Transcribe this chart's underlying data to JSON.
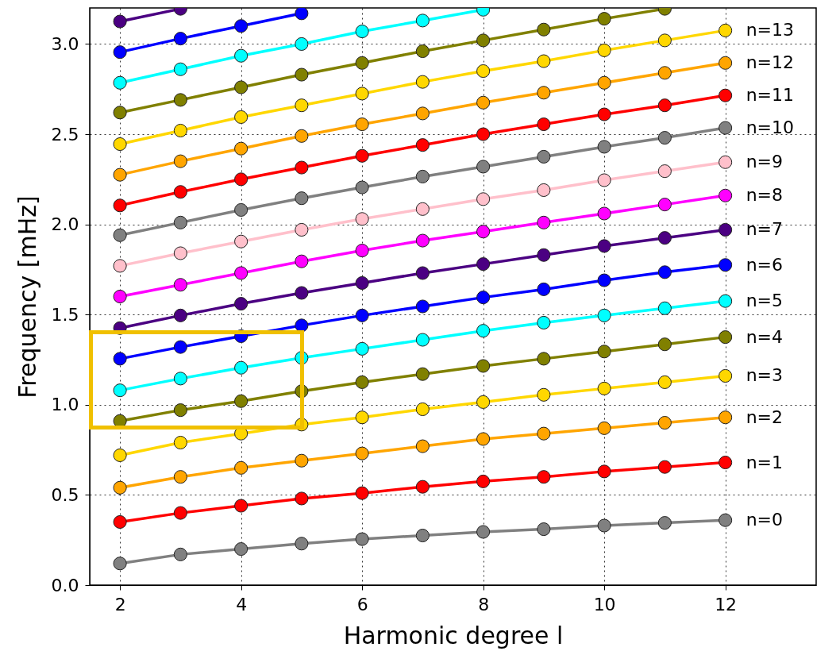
{
  "chart_data": {
    "type": "line",
    "xlabel": "Harmonic degree l",
    "ylabel": "Frequency [mHz]",
    "x": [
      2,
      3,
      4,
      5,
      6,
      7,
      8,
      9,
      10,
      11,
      12
    ],
    "xlim": [
      1.5,
      13.5
    ],
    "xticks": [
      2,
      4,
      6,
      8,
      10,
      12
    ],
    "ylim": [
      0,
      3.2
    ],
    "yticks": [
      {
        "value": 0,
        "label": "0.0"
      },
      {
        "value": 0.5,
        "label": "0.5"
      },
      {
        "value": 1,
        "label": "1.0"
      },
      {
        "value": 1.5,
        "label": "1.5"
      },
      {
        "value": 2,
        "label": "2.0"
      },
      {
        "value": 2.5,
        "label": "2.5"
      },
      {
        "value": 3,
        "label": "3.0"
      }
    ],
    "grid": true,
    "marker": "circle",
    "line_style": "solid",
    "series": [
      {
        "name": "n=0",
        "color": "#808080",
        "values": [
          0.12,
          0.17,
          0.2,
          0.23,
          0.255,
          0.275,
          0.295,
          0.31,
          0.33,
          0.345,
          0.36
        ]
      },
      {
        "name": "n=1",
        "color": "#ff0000",
        "values": [
          0.35,
          0.4,
          0.44,
          0.48,
          0.51,
          0.545,
          0.575,
          0.6,
          0.63,
          0.655,
          0.68
        ]
      },
      {
        "name": "n=2",
        "color": "#ffa500",
        "values": [
          0.54,
          0.6,
          0.65,
          0.69,
          0.73,
          0.77,
          0.81,
          0.84,
          0.87,
          0.9,
          0.93
        ]
      },
      {
        "name": "n=3",
        "color": "#ffd700",
        "values": [
          0.72,
          0.79,
          0.84,
          0.89,
          0.93,
          0.975,
          1.015,
          1.055,
          1.09,
          1.125,
          1.16
        ]
      },
      {
        "name": "n=4",
        "color": "#808000",
        "values": [
          0.91,
          0.97,
          1.02,
          1.075,
          1.125,
          1.17,
          1.215,
          1.255,
          1.295,
          1.335,
          1.375
        ]
      },
      {
        "name": "n=5",
        "color": "#00ffff",
        "values": [
          1.08,
          1.145,
          1.205,
          1.26,
          1.31,
          1.36,
          1.41,
          1.455,
          1.495,
          1.535,
          1.575
        ]
      },
      {
        "name": "n=6",
        "color": "#0000ff",
        "values": [
          1.255,
          1.32,
          1.38,
          1.44,
          1.495,
          1.545,
          1.595,
          1.64,
          1.69,
          1.735,
          1.775
        ]
      },
      {
        "name": "n=7",
        "color": "#4b0082",
        "values": [
          1.425,
          1.495,
          1.56,
          1.62,
          1.675,
          1.73,
          1.78,
          1.83,
          1.88,
          1.925,
          1.97
        ]
      },
      {
        "name": "n=8",
        "color": "#ff00ff",
        "values": [
          1.6,
          1.665,
          1.73,
          1.795,
          1.855,
          1.91,
          1.96,
          2.01,
          2.06,
          2.11,
          2.16
        ]
      },
      {
        "name": "n=9",
        "color": "#ffc0cb",
        "values": [
          1.77,
          1.84,
          1.905,
          1.97,
          2.03,
          2.085,
          2.14,
          2.19,
          2.245,
          2.295,
          2.345
        ]
      },
      {
        "name": "n=10",
        "color": "#808080",
        "values": [
          1.94,
          2.01,
          2.08,
          2.145,
          2.205,
          2.265,
          2.32,
          2.375,
          2.43,
          2.48,
          2.535
        ]
      },
      {
        "name": "n=11",
        "color": "#ff0000",
        "values": [
          2.105,
          2.18,
          2.25,
          2.315,
          2.38,
          2.44,
          2.5,
          2.555,
          2.61,
          2.66,
          2.715
        ]
      },
      {
        "name": "n=12",
        "color": "#ffa500",
        "values": [
          2.275,
          2.35,
          2.42,
          2.49,
          2.555,
          2.615,
          2.675,
          2.73,
          2.785,
          2.84,
          2.895
        ]
      },
      {
        "name": "n=13",
        "color": "#ffd700",
        "values": [
          2.445,
          2.52,
          2.595,
          2.66,
          2.725,
          2.79,
          2.85,
          2.905,
          2.965,
          3.02,
          3.075
        ]
      },
      {
        "color": "#808000",
        "values": [
          2.62,
          2.69,
          2.76,
          2.83,
          2.895,
          2.96,
          3.02,
          3.08,
          3.14,
          3.195,
          null
        ]
      },
      {
        "color": "#00ffff",
        "values": [
          2.785,
          2.86,
          2.935,
          3.0,
          3.07,
          3.13,
          3.19,
          null,
          null,
          null,
          null
        ]
      },
      {
        "color": "#0000ff",
        "values": [
          2.955,
          3.03,
          3.1,
          3.17,
          null,
          null,
          null,
          null,
          null,
          null,
          null
        ]
      },
      {
        "color": "#4b0082",
        "values": [
          3.125,
          3.195,
          null,
          null,
          null,
          null,
          null,
          null,
          null,
          null,
          null
        ]
      }
    ]
  }
}
